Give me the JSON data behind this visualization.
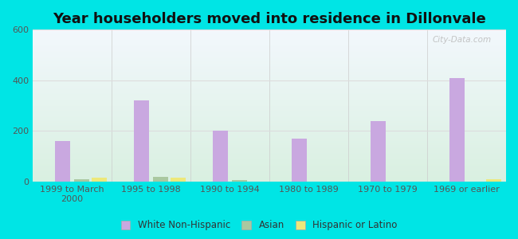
{
  "title": "Year householders moved into residence in Dillonvale",
  "categories": [
    "1999 to March\n2000",
    "1995 to 1998",
    "1990 to 1994",
    "1980 to 1989",
    "1970 to 1979",
    "1969 or earlier"
  ],
  "series": {
    "White Non-Hispanic": [
      160,
      320,
      200,
      170,
      240,
      410
    ],
    "Asian": [
      10,
      18,
      5,
      0,
      0,
      0
    ],
    "Hispanic or Latino": [
      14,
      14,
      0,
      0,
      0,
      9
    ]
  },
  "colors": {
    "White Non-Hispanic": "#c9a8e0",
    "Asian": "#aac8a0",
    "Hispanic or Latino": "#ede87a"
  },
  "ylim": [
    0,
    600
  ],
  "yticks": [
    0,
    200,
    400,
    600
  ],
  "background_outer": "#00e5e5",
  "grid_color": "#dddddd",
  "title_fontsize": 13,
  "tick_fontsize": 8,
  "legend_fontsize": 8.5,
  "bar_width": 0.2,
  "watermark": "City-Data.com"
}
